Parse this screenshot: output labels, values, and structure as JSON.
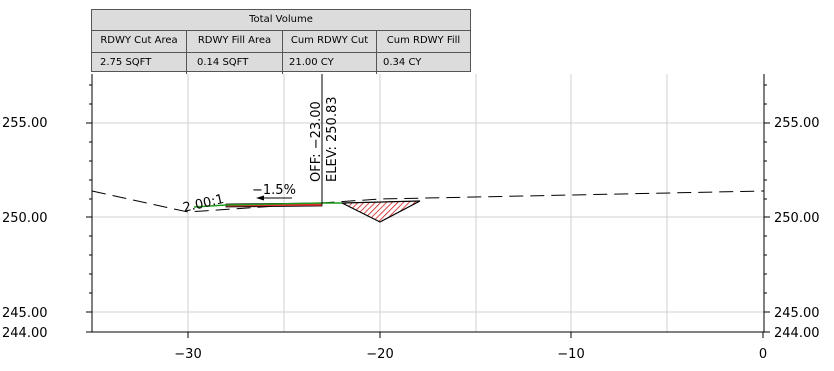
{
  "volume_table": {
    "title": "Total Volume",
    "headers": [
      "RDWY Cut Area",
      "RDWY Fill Area",
      "Cum RDWY Cut",
      "Cum RDWY Fill"
    ],
    "values": [
      "2.75 SQFT",
      "0.14 SQFT",
      "21.00 CY",
      "0.34 CY"
    ]
  },
  "axes": {
    "x_ticks": [
      "−30",
      "−20",
      "−10",
      "0"
    ],
    "y_ticks": [
      "255.00",
      "250.00",
      "245.00",
      "244.00"
    ]
  },
  "labels": {
    "offset": "OFF: −23.00",
    "elevation": "ELEV: 250.83",
    "side_slope": "2.00:1",
    "cross_slope": "−1.5%"
  },
  "colors": {
    "fill_area": "#e03030",
    "finished_grade": "#1f9a1f",
    "grid": "#d0d0d0"
  }
}
